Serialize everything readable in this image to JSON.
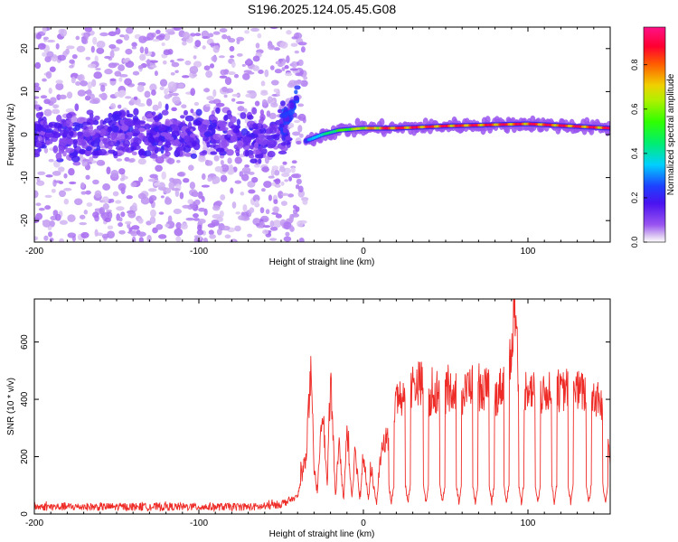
{
  "title": "S196.2025.124.05.45.G08",
  "chart_data": [
    {
      "type": "heatmap",
      "xlabel": "Height of straight line (km)",
      "ylabel": "Frequency (Hz)",
      "xlim": [
        -200,
        150
      ],
      "ylim": [
        -25,
        25
      ],
      "x_ticks": [
        -200,
        -100,
        0,
        100
      ],
      "y_ticks": [
        -20,
        -10,
        0,
        10,
        20
      ],
      "grid": false,
      "colorbar": {
        "label": "Normalized spectral amplitude",
        "range": [
          0,
          0.97
        ],
        "ticks": [
          0.0,
          0.2,
          0.4,
          0.6,
          0.8
        ],
        "tick_labels": [
          "0.0",
          "0.2",
          "0.4",
          "0.6",
          "0.8"
        ],
        "colormap": "hsv-reversed (purple low -> blue -> cyan -> green -> yellow -> red -> magenta high)"
      },
      "features": [
        {
          "description": "diffuse low-amplitude noise",
          "x_range": [
            -200,
            -35
          ],
          "freq_range": [
            -25,
            25
          ],
          "amplitude": 0.05
        },
        {
          "description": "dense noise band",
          "x_range": [
            -200,
            -45
          ],
          "freq_range": [
            -4,
            4
          ],
          "amplitude": 0.12
        },
        {
          "description": "rising feature",
          "x": [
            -50,
            -45,
            -40
          ],
          "freq": [
            2,
            5,
            9
          ],
          "amplitude": 0.2
        },
        {
          "description": "signal line",
          "x": [
            -35,
            -25,
            -15,
            0,
            20,
            50,
            100,
            150
          ],
          "freq": [
            -1.5,
            0,
            1,
            1.5,
            1.5,
            2,
            2.5,
            1.5
          ],
          "amplitude_range": [
            0.3,
            0.95
          ]
        }
      ]
    },
    {
      "type": "line",
      "xlabel": "Height of straight line (km)",
      "ylabel": "SNR (10 * v/v)",
      "xlim": [
        -200,
        150
      ],
      "ylim": [
        0,
        750
      ],
      "x_ticks": [
        -200,
        -100,
        0,
        100
      ],
      "y_ticks": [
        0,
        200,
        400,
        600
      ],
      "grid": false,
      "series": [
        {
          "color": "#ee2b26",
          "x": [
            -200,
            -150,
            -100,
            -60,
            -50,
            -40,
            -35,
            -32,
            -30,
            -28,
            -25,
            -22,
            -20,
            -17,
            -15,
            -12,
            -10,
            -7,
            -5,
            -2,
            0,
            3,
            5,
            8,
            10,
            13,
            15,
            18,
            20,
            25,
            30,
            35,
            40,
            45,
            50,
            55,
            60,
            65,
            70,
            75,
            80,
            85,
            90,
            92,
            95,
            100,
            105,
            110,
            115,
            120,
            125,
            130,
            135,
            140,
            145,
            150
          ],
          "y": [
            25,
            25,
            25,
            25,
            35,
            60,
            200,
            480,
            150,
            80,
            400,
            90,
            480,
            60,
            250,
            50,
            280,
            60,
            230,
            40,
            210,
            50,
            150,
            30,
            180,
            260,
            260,
            340,
            400,
            420,
            450,
            460,
            380,
            430,
            420,
            440,
            400,
            460,
            420,
            440,
            400,
            460,
            580,
            750,
            400,
            450,
            420,
            410,
            460,
            420,
            450,
            430,
            420,
            410,
            380,
            200
          ],
          "dips_to_baseline_near_x": [
            17,
            27,
            38,
            48,
            58,
            68,
            78,
            87,
            96,
            106,
            116,
            126,
            137,
            147
          ],
          "noise": "high-frequency fluctuation about the values above"
        }
      ]
    }
  ]
}
